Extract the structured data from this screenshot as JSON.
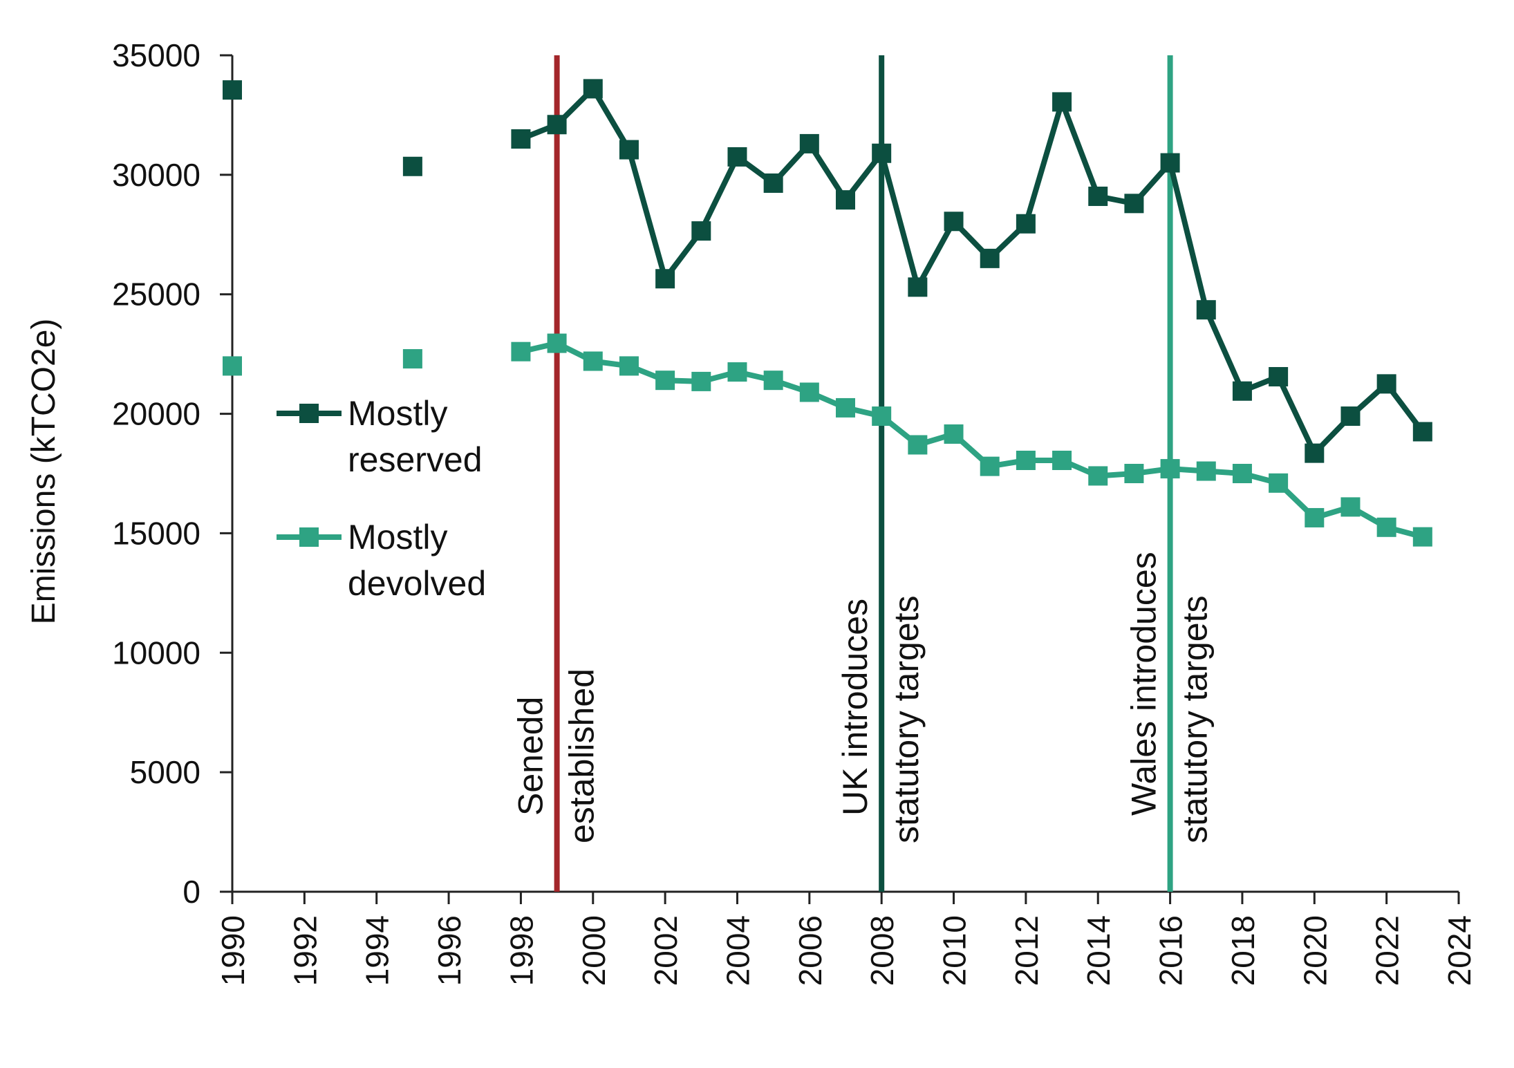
{
  "chart_data": {
    "type": "line",
    "ylabel": "Emissions (kTCO2e)",
    "xlabel": "",
    "xlim": [
      1990,
      2024
    ],
    "ylim": [
      0,
      35000
    ],
    "x_ticks": [
      "1990",
      "1992",
      "1994",
      "1996",
      "1998",
      "2000",
      "2002",
      "2004",
      "2006",
      "2008",
      "2010",
      "2012",
      "2014",
      "2016",
      "2018",
      "2020",
      "2022",
      "2024"
    ],
    "y_ticks": [
      "0",
      "5000",
      "10000",
      "15000",
      "20000",
      "25000",
      "30000",
      "35000"
    ],
    "grid": false,
    "legend_position": "left-middle",
    "colors": {
      "reserved": "#0c4f40",
      "devolved": "#2ea383",
      "senedd": "#a3262a",
      "uk": "#0c4f40",
      "wales": "#2ea383",
      "axis": "#222222"
    },
    "series": [
      {
        "name": "Mostly reserved",
        "color": "#0c4f40",
        "points": [
          [
            1990,
            33550
          ],
          [
            1995,
            30350
          ],
          [
            1998,
            31500
          ],
          [
            1999,
            32100
          ],
          [
            2000,
            33600
          ],
          [
            2001,
            31050
          ],
          [
            2002,
            25650
          ],
          [
            2003,
            27650
          ],
          [
            2004,
            30750
          ],
          [
            2005,
            29650
          ],
          [
            2006,
            31300
          ],
          [
            2007,
            28950
          ],
          [
            2008,
            30900
          ],
          [
            2009,
            25300
          ],
          [
            2010,
            28050
          ],
          [
            2011,
            26500
          ],
          [
            2012,
            27950
          ],
          [
            2013,
            33050
          ],
          [
            2014,
            29100
          ],
          [
            2015,
            28800
          ],
          [
            2016,
            30500
          ],
          [
            2017,
            24350
          ],
          [
            2018,
            20950
          ],
          [
            2019,
            21550
          ],
          [
            2020,
            18350
          ],
          [
            2021,
            19900
          ],
          [
            2022,
            21250
          ],
          [
            2023,
            19250
          ]
        ]
      },
      {
        "name": "Mostly devolved",
        "color": "#2ea383",
        "points": [
          [
            1990,
            22000
          ],
          [
            1995,
            22300
          ],
          [
            1998,
            22600
          ],
          [
            1999,
            22950
          ],
          [
            2000,
            22200
          ],
          [
            2001,
            22000
          ],
          [
            2002,
            21400
          ],
          [
            2003,
            21350
          ],
          [
            2004,
            21750
          ],
          [
            2005,
            21400
          ],
          [
            2006,
            20900
          ],
          [
            2007,
            20250
          ],
          [
            2008,
            19900
          ],
          [
            2009,
            18700
          ],
          [
            2010,
            19150
          ],
          [
            2011,
            17800
          ],
          [
            2012,
            18050
          ],
          [
            2013,
            18050
          ],
          [
            2014,
            17400
          ],
          [
            2015,
            17500
          ],
          [
            2016,
            17700
          ],
          [
            2017,
            17600
          ],
          [
            2018,
            17500
          ],
          [
            2019,
            17100
          ],
          [
            2020,
            15650
          ],
          [
            2021,
            16100
          ],
          [
            2022,
            15250
          ],
          [
            2023,
            14850
          ]
        ]
      }
    ],
    "legend": [
      {
        "lines": [
          "Mostly",
          "reserved"
        ]
      },
      {
        "lines": [
          "Mostly",
          "devolved"
        ]
      }
    ],
    "annotations": [
      {
        "x": 1999,
        "color": "#a3262a",
        "lines": [
          "Senedd",
          "established"
        ]
      },
      {
        "x": 2008,
        "color": "#0c4f40",
        "lines": [
          "UK introduces",
          "statutory targets"
        ]
      },
      {
        "x": 2016,
        "color": "#2ea383",
        "lines": [
          "Wales introduces",
          "statutory targets"
        ]
      }
    ]
  }
}
